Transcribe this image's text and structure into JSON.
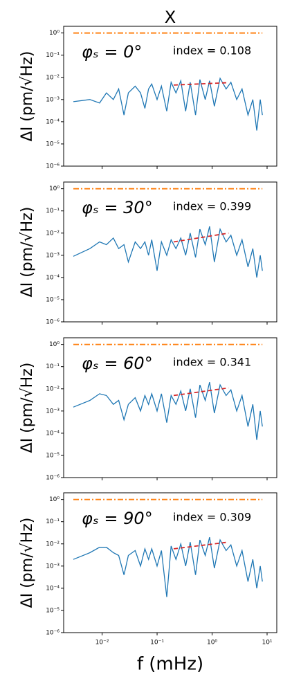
{
  "chart_data": [
    {
      "type": "line",
      "title": "X",
      "ylabel": "ΔI (pm/√Hz)",
      "log_x": true,
      "log_y": true,
      "annotations": [
        "φₛ = 0°",
        "index = 0.108"
      ],
      "xlim": [
        0.002,
        15
      ],
      "xticks": [
        0.01,
        0.1,
        1,
        10
      ],
      "ylim": [
        1e-06,
        2
      ],
      "yticks": [
        {
          "value": 1,
          "label": "10⁰"
        },
        {
          "value": 0.1,
          "label": "10⁻¹"
        },
        {
          "value": 0.01,
          "label": "10⁻²"
        },
        {
          "value": 0.001,
          "label": "10⁻³"
        },
        {
          "value": 0.0001,
          "label": "10⁻⁴"
        },
        {
          "value": 1e-05,
          "label": "10⁻⁵"
        },
        {
          "value": 1e-06,
          "label": "10⁻⁶"
        }
      ],
      "x": [
        0.003,
        0.006,
        0.009,
        0.012,
        0.016,
        0.02,
        0.025,
        0.03,
        0.04,
        0.05,
        0.06,
        0.07,
        0.08,
        0.1,
        0.12,
        0.15,
        0.18,
        0.22,
        0.27,
        0.33,
        0.4,
        0.5,
        0.6,
        0.75,
        0.9,
        1.1,
        1.4,
        1.8,
        2.2,
        2.8,
        3.5,
        4.5,
        5.5,
        6.5,
        7.5,
        8.2
      ],
      "series": [
        {
          "color": "#1f77b4",
          "values": [
            0.0008,
            0.001,
            0.0007,
            0.002,
            0.001,
            0.003,
            0.0002,
            0.002,
            0.004,
            0.002,
            0.0004,
            0.003,
            0.005,
            0.001,
            0.004,
            0.0003,
            0.006,
            0.002,
            0.007,
            0.0003,
            0.006,
            0.0002,
            0.008,
            0.001,
            0.007,
            0.0005,
            0.009,
            0.003,
            0.006,
            0.001,
            0.003,
            0.0002,
            0.001,
            4e-05,
            0.001,
            0.0002
          ]
        },
        {
          "color": "#d62728",
          "style": "dashed",
          "x": [
            0.2,
            2
          ],
          "values": [
            0.0045,
            0.0058
          ]
        },
        {
          "color": "#ff7f0e",
          "style": "dashdot",
          "x": [
            0.003,
            8.2
          ],
          "values": [
            1,
            1
          ]
        }
      ]
    },
    {
      "type": "line",
      "ylabel": "ΔI (pm/√Hz)",
      "log_x": true,
      "log_y": true,
      "annotations": [
        "φₛ = 30°",
        "index = 0.399"
      ],
      "xlim": [
        0.002,
        15
      ],
      "xticks": [
        0.01,
        0.1,
        1,
        10
      ],
      "ylim": [
        1e-06,
        2
      ],
      "yticks": [
        {
          "value": 1,
          "label": "10⁰"
        },
        {
          "value": 0.1,
          "label": "10⁻¹"
        },
        {
          "value": 0.01,
          "label": "10⁻²"
        },
        {
          "value": 0.001,
          "label": "10⁻³"
        },
        {
          "value": 0.0001,
          "label": "10⁻⁴"
        },
        {
          "value": 1e-05,
          "label": "10⁻⁵"
        },
        {
          "value": 1e-06,
          "label": "10⁻⁶"
        }
      ],
      "x": [
        0.003,
        0.006,
        0.009,
        0.012,
        0.016,
        0.02,
        0.025,
        0.03,
        0.04,
        0.05,
        0.06,
        0.07,
        0.08,
        0.1,
        0.12,
        0.15,
        0.18,
        0.22,
        0.27,
        0.33,
        0.4,
        0.5,
        0.6,
        0.75,
        0.9,
        1.1,
        1.4,
        1.8,
        2.2,
        2.8,
        3.5,
        4.5,
        5.5,
        6.5,
        7.5,
        8.2
      ],
      "series": [
        {
          "color": "#1f77b4",
          "values": [
            0.0009,
            0.002,
            0.004,
            0.003,
            0.006,
            0.002,
            0.003,
            0.0005,
            0.004,
            0.002,
            0.004,
            0.001,
            0.005,
            0.0002,
            0.004,
            0.001,
            0.005,
            0.002,
            0.006,
            0.001,
            0.01,
            0.0008,
            0.015,
            0.003,
            0.02,
            0.0005,
            0.015,
            0.004,
            0.008,
            0.001,
            0.005,
            0.0003,
            0.002,
            0.0001,
            0.001,
            0.0002
          ]
        },
        {
          "color": "#d62728",
          "style": "dashed",
          "x": [
            0.2,
            2
          ],
          "values": [
            0.004,
            0.01
          ]
        },
        {
          "color": "#ff7f0e",
          "style": "dashdot",
          "x": [
            0.003,
            8.2
          ],
          "values": [
            1,
            1
          ]
        }
      ]
    },
    {
      "type": "line",
      "ylabel": "ΔI (pm/√Hz)",
      "log_x": true,
      "log_y": true,
      "annotations": [
        "φₛ = 60°",
        "index = 0.341"
      ],
      "xlim": [
        0.002,
        15
      ],
      "xticks": [
        0.01,
        0.1,
        1,
        10
      ],
      "ylim": [
        1e-06,
        2
      ],
      "yticks": [
        {
          "value": 1,
          "label": "10⁰"
        },
        {
          "value": 0.1,
          "label": "10⁻¹"
        },
        {
          "value": 0.01,
          "label": "10⁻²"
        },
        {
          "value": 0.001,
          "label": "10⁻³"
        },
        {
          "value": 0.0001,
          "label": "10⁻⁴"
        },
        {
          "value": 1e-05,
          "label": "10⁻⁵"
        },
        {
          "value": 1e-06,
          "label": "10⁻⁶"
        }
      ],
      "x": [
        0.003,
        0.006,
        0.009,
        0.012,
        0.016,
        0.02,
        0.025,
        0.03,
        0.04,
        0.05,
        0.06,
        0.07,
        0.08,
        0.1,
        0.12,
        0.15,
        0.18,
        0.22,
        0.27,
        0.33,
        0.4,
        0.5,
        0.6,
        0.75,
        0.9,
        1.1,
        1.4,
        1.8,
        2.2,
        2.8,
        3.5,
        4.5,
        5.5,
        6.5,
        7.5,
        8.2
      ],
      "series": [
        {
          "color": "#1f77b4",
          "values": [
            0.0015,
            0.003,
            0.006,
            0.005,
            0.002,
            0.003,
            0.0004,
            0.002,
            0.004,
            0.001,
            0.005,
            0.002,
            0.006,
            0.001,
            0.006,
            0.0003,
            0.005,
            0.002,
            0.008,
            0.001,
            0.01,
            0.0005,
            0.015,
            0.003,
            0.02,
            0.0008,
            0.015,
            0.005,
            0.009,
            0.001,
            0.005,
            0.0002,
            0.002,
            5e-05,
            0.001,
            0.0002
          ]
        },
        {
          "color": "#d62728",
          "style": "dashed",
          "x": [
            0.2,
            2
          ],
          "values": [
            0.005,
            0.011
          ]
        },
        {
          "color": "#ff7f0e",
          "style": "dashdot",
          "x": [
            0.003,
            8.2
          ],
          "values": [
            1,
            1
          ]
        }
      ]
    },
    {
      "type": "line",
      "ylabel": "ΔI (pm/√Hz)",
      "xlabel": "f (mHz)",
      "log_x": true,
      "log_y": true,
      "annotations": [
        "φₛ = 90°",
        "index = 0.309"
      ],
      "xlim": [
        0.002,
        15
      ],
      "xticks": [
        {
          "value": 0.01,
          "label": "10⁻²"
        },
        {
          "value": 0.1,
          "label": "10⁻¹"
        },
        {
          "value": 1,
          "label": "10⁰"
        },
        {
          "value": 10,
          "label": "10¹"
        }
      ],
      "ylim": [
        1e-06,
        2
      ],
      "yticks": [
        {
          "value": 1,
          "label": "10⁰"
        },
        {
          "value": 0.1,
          "label": "10⁻¹"
        },
        {
          "value": 0.01,
          "label": "10⁻²"
        },
        {
          "value": 0.001,
          "label": "10⁻³"
        },
        {
          "value": 0.0001,
          "label": "10⁻⁴"
        },
        {
          "value": 1e-05,
          "label": "10⁻⁵"
        },
        {
          "value": 1e-06,
          "label": "10⁻⁶"
        }
      ],
      "x": [
        0.003,
        0.006,
        0.009,
        0.012,
        0.016,
        0.02,
        0.025,
        0.03,
        0.04,
        0.05,
        0.06,
        0.07,
        0.08,
        0.1,
        0.12,
        0.15,
        0.18,
        0.22,
        0.27,
        0.33,
        0.4,
        0.5,
        0.6,
        0.75,
        0.9,
        1.1,
        1.4,
        1.8,
        2.2,
        2.8,
        3.5,
        4.5,
        5.5,
        6.5,
        7.5,
        8.2
      ],
      "series": [
        {
          "color": "#1f77b4",
          "values": [
            0.002,
            0.004,
            0.007,
            0.007,
            0.004,
            0.003,
            0.0004,
            0.003,
            0.005,
            0.001,
            0.006,
            0.002,
            0.006,
            0.001,
            0.005,
            4e-05,
            0.008,
            0.002,
            0.01,
            0.001,
            0.012,
            0.0004,
            0.015,
            0.003,
            0.02,
            0.0008,
            0.015,
            0.005,
            0.009,
            0.001,
            0.005,
            0.0002,
            0.002,
            0.0001,
            0.001,
            0.0002
          ]
        },
        {
          "color": "#d62728",
          "style": "dashed",
          "x": [
            0.2,
            2
          ],
          "values": [
            0.006,
            0.012
          ]
        },
        {
          "color": "#ff7f0e",
          "style": "dashdot",
          "x": [
            0.003,
            8.2
          ],
          "values": [
            1,
            1
          ]
        }
      ]
    }
  ]
}
